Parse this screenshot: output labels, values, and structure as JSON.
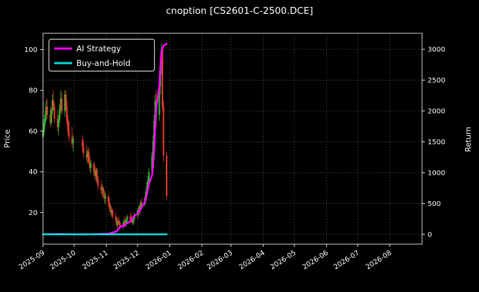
{
  "chart_data": {
    "type": "candlestick",
    "title": "cnoption [CS2601-C-2500.DCE]",
    "legend": {
      "position": "upper left",
      "entries": [
        {
          "label": "AI Strategy",
          "color": "#ff00ff"
        },
        {
          "label": "Buy-and-Hold",
          "color": "#00dddd"
        }
      ]
    },
    "left_axis": {
      "label": "Price",
      "ticks": [
        20,
        40,
        60,
        80,
        100
      ],
      "lim": [
        4.5,
        108
      ]
    },
    "right_axis": {
      "label": "Return",
      "ticks": [
        0,
        500,
        1000,
        1500,
        2000,
        2500,
        3000
      ],
      "lim": [
        -160,
        3260
      ]
    },
    "x_axis": {
      "tick_labels": [
        "2025-09",
        "2025-10",
        "2025-11",
        "2025-12",
        "2026-01",
        "2026-02",
        "2026-03",
        "2026-04",
        "2026-05",
        "2026-06",
        "2026-07",
        "2026-08"
      ],
      "lim": [
        "2025-09-01",
        "2026-09-01"
      ],
      "tick_rotation": -33
    },
    "grid": {
      "on": true,
      "style": "dotted",
      "color": "#6e6e6e"
    },
    "colors": {
      "background": "#000000",
      "text": "#ffffff",
      "candle_up": "#2bb52b",
      "candle_down": "#e23a2e",
      "ai_strategy": "#ff00ff",
      "buy_and_hold": "#00dddd",
      "spine": "#d9d9d9"
    },
    "candles": [
      [
        "2025-09-01",
        57,
        62,
        55,
        60
      ],
      [
        "2025-09-02",
        60,
        66,
        58,
        64
      ],
      [
        "2025-09-03",
        64,
        70,
        62,
        68
      ],
      [
        "2025-09-04",
        68,
        75,
        65,
        72
      ],
      [
        "2025-09-05",
        72,
        76,
        66,
        68
      ],
      [
        "2025-09-08",
        68,
        72,
        62,
        64
      ],
      [
        "2025-09-09",
        64,
        71,
        63,
        70
      ],
      [
        "2025-09-10",
        70,
        78,
        68,
        75
      ],
      [
        "2025-09-11",
        75,
        80,
        70,
        72
      ],
      [
        "2025-09-12",
        72,
        74,
        64,
        66
      ],
      [
        "2025-09-15",
        66,
        70,
        60,
        62
      ],
      [
        "2025-09-16",
        62,
        68,
        58,
        66
      ],
      [
        "2025-09-17",
        66,
        73,
        64,
        71
      ],
      [
        "2025-09-18",
        71,
        80,
        69,
        76
      ],
      [
        "2025-09-19",
        76,
        79,
        68,
        70
      ],
      [
        "2025-09-22",
        70,
        80,
        67,
        78
      ],
      [
        "2025-09-23",
        78,
        80,
        70,
        72
      ],
      [
        "2025-09-24",
        72,
        75,
        63,
        65
      ],
      [
        "2025-09-25",
        65,
        68,
        58,
        60
      ],
      [
        "2025-09-26",
        60,
        65,
        55,
        57
      ],
      [
        "2025-09-29",
        57,
        62,
        52,
        54
      ],
      [
        "2025-09-30",
        54,
        58,
        50,
        56
      ],
      [
        "2025-10-09",
        56,
        58,
        50,
        52
      ],
      [
        "2025-10-10",
        52,
        55,
        47,
        49
      ],
      [
        "2025-10-13",
        49,
        53,
        45,
        47
      ],
      [
        "2025-10-14",
        47,
        51,
        44,
        50
      ],
      [
        "2025-10-15",
        50,
        52,
        44,
        45
      ],
      [
        "2025-10-16",
        45,
        48,
        40,
        42
      ],
      [
        "2025-10-17",
        42,
        46,
        39,
        44
      ],
      [
        "2025-10-20",
        44,
        45,
        38,
        40
      ],
      [
        "2025-10-21",
        40,
        43,
        36,
        38
      ],
      [
        "2025-10-22",
        38,
        42,
        35,
        41
      ],
      [
        "2025-10-23",
        41,
        42,
        34,
        36
      ],
      [
        "2025-10-24",
        36,
        38,
        31,
        33
      ],
      [
        "2025-10-27",
        33,
        36,
        29,
        31
      ],
      [
        "2025-10-28",
        31,
        34,
        28,
        32
      ],
      [
        "2025-10-29",
        32,
        33,
        27,
        29
      ],
      [
        "2025-10-30",
        29,
        31,
        25,
        27
      ],
      [
        "2025-10-31",
        27,
        30,
        24,
        28
      ],
      [
        "2025-11-03",
        28,
        29,
        23,
        25
      ],
      [
        "2025-11-04",
        25,
        27,
        21,
        22
      ],
      [
        "2025-11-05",
        22,
        24,
        19,
        20
      ],
      [
        "2025-11-06",
        20,
        23,
        18,
        21
      ],
      [
        "2025-11-07",
        21,
        22,
        17,
        18
      ],
      [
        "2025-11-10",
        18,
        20,
        15,
        16
      ],
      [
        "2025-11-11",
        16,
        18,
        13,
        14
      ],
      [
        "2025-11-12",
        14,
        17,
        12,
        16
      ],
      [
        "2025-11-13",
        16,
        18,
        14,
        15
      ],
      [
        "2025-11-14",
        15,
        16,
        12,
        13
      ],
      [
        "2025-11-17",
        13,
        15,
        12,
        14
      ],
      [
        "2025-11-18",
        14,
        17,
        13,
        16
      ],
      [
        "2025-11-19",
        16,
        18,
        14,
        15
      ],
      [
        "2025-11-20",
        15,
        17,
        13,
        16
      ],
      [
        "2025-11-21",
        16,
        19,
        15,
        18
      ],
      [
        "2025-11-24",
        18,
        20,
        16,
        17
      ],
      [
        "2025-11-25",
        17,
        19,
        15,
        16
      ],
      [
        "2025-11-26",
        16,
        18,
        14,
        15
      ],
      [
        "2025-11-27",
        15,
        18,
        14,
        17
      ],
      [
        "2025-11-28",
        17,
        20,
        16,
        19
      ],
      [
        "2025-12-01",
        19,
        22,
        17,
        21
      ],
      [
        "2025-12-02",
        21,
        23,
        18,
        20
      ],
      [
        "2025-12-03",
        20,
        24,
        19,
        23
      ],
      [
        "2025-12-04",
        23,
        26,
        21,
        25
      ],
      [
        "2025-12-05",
        25,
        27,
        22,
        24
      ],
      [
        "2025-12-08",
        24,
        28,
        23,
        27
      ],
      [
        "2025-12-09",
        27,
        31,
        25,
        30
      ],
      [
        "2025-12-10",
        30,
        35,
        28,
        33
      ],
      [
        "2025-12-11",
        33,
        38,
        30,
        36
      ],
      [
        "2025-12-12",
        36,
        42,
        34,
        40
      ],
      [
        "2025-12-15",
        40,
        50,
        38,
        48
      ],
      [
        "2025-12-16",
        48,
        58,
        45,
        55
      ],
      [
        "2025-12-17",
        55,
        68,
        52,
        65
      ],
      [
        "2025-12-18",
        65,
        78,
        60,
        75
      ],
      [
        "2025-12-19",
        75,
        80,
        62,
        68
      ],
      [
        "2025-12-22",
        68,
        85,
        65,
        82
      ],
      [
        "2025-12-23",
        82,
        95,
        78,
        92
      ],
      [
        "2025-12-24",
        92,
        103,
        88,
        100
      ],
      [
        "2025-12-25",
        100,
        101,
        70,
        72
      ],
      [
        "2025-12-26",
        72,
        75,
        45,
        48
      ],
      [
        "2025-12-29",
        48,
        50,
        26,
        28
      ]
    ],
    "series": [
      {
        "name": "AI Strategy",
        "axis": "right",
        "color_key": "ai_strategy",
        "points": [
          [
            "2025-09-01",
            0
          ],
          [
            "2025-09-15",
            5
          ],
          [
            "2025-10-09",
            -5
          ],
          [
            "2025-10-24",
            5
          ],
          [
            "2025-11-03",
            10
          ],
          [
            "2025-11-06",
            25
          ],
          [
            "2025-11-10",
            40
          ],
          [
            "2025-11-12",
            70
          ],
          [
            "2025-11-14",
            110
          ],
          [
            "2025-11-17",
            150
          ],
          [
            "2025-11-18",
            130
          ],
          [
            "2025-11-20",
            170
          ],
          [
            "2025-11-24",
            210
          ],
          [
            "2025-11-26",
            250
          ],
          [
            "2025-11-28",
            300
          ],
          [
            "2025-12-01",
            340
          ],
          [
            "2025-12-03",
            380
          ],
          [
            "2025-12-05",
            440
          ],
          [
            "2025-12-08",
            520
          ],
          [
            "2025-12-09",
            580
          ],
          [
            "2025-12-10",
            650
          ],
          [
            "2025-12-11",
            730
          ],
          [
            "2025-12-12",
            820
          ],
          [
            "2025-12-15",
            960
          ],
          [
            "2025-12-16",
            1120
          ],
          [
            "2025-12-17",
            1400
          ],
          [
            "2025-12-18",
            1750
          ],
          [
            "2025-12-19",
            2050
          ],
          [
            "2025-12-22",
            2400
          ],
          [
            "2025-12-23",
            2700
          ],
          [
            "2025-12-24",
            2950
          ],
          [
            "2025-12-26",
            3060
          ],
          [
            "2025-12-29",
            3090
          ]
        ]
      },
      {
        "name": "Buy-and-Hold",
        "axis": "right",
        "color_key": "buy_and_hold",
        "points": [
          [
            "2025-09-01",
            0
          ],
          [
            "2025-12-29",
            0
          ]
        ]
      }
    ]
  }
}
